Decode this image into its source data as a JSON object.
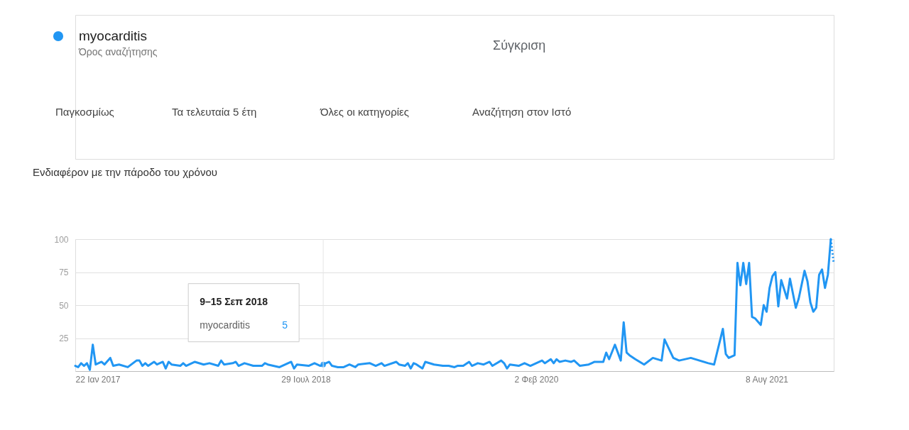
{
  "chart_data": {
    "type": "line",
    "title": "Ενδιαφέρον με την πάροδο του χρόνου",
    "x": [
      "2017-01-22",
      "2017-01-29",
      "2017-02-05",
      "2017-02-12",
      "2017-02-19",
      "2017-02-26",
      "2017-03-05",
      "2017-03-12",
      "2017-03-26",
      "2017-04-02",
      "2017-04-16",
      "2017-04-23",
      "2017-05-07",
      "2017-05-28",
      "2017-06-18",
      "2017-06-25",
      "2017-07-02",
      "2017-07-09",
      "2017-07-16",
      "2017-07-30",
      "2017-08-06",
      "2017-08-20",
      "2017-08-27",
      "2017-09-03",
      "2017-09-10",
      "2017-10-01",
      "2017-10-08",
      "2017-10-15",
      "2017-11-05",
      "2017-11-26",
      "2017-12-10",
      "2017-12-31",
      "2018-01-07",
      "2018-01-14",
      "2018-02-04",
      "2018-02-11",
      "2018-02-18",
      "2018-03-04",
      "2018-03-25",
      "2018-04-15",
      "2018-04-22",
      "2018-04-29",
      "2018-05-27",
      "2018-06-24",
      "2018-07-01",
      "2018-07-08",
      "2018-08-05",
      "2018-08-19",
      "2018-09-02",
      "2018-09-09",
      "2018-09-23",
      "2018-09-30",
      "2018-10-14",
      "2018-10-28",
      "2018-11-11",
      "2018-11-25",
      "2018-12-02",
      "2018-12-30",
      "2019-01-13",
      "2019-01-27",
      "2019-02-03",
      "2019-03-03",
      "2019-03-10",
      "2019-03-24",
      "2019-03-31",
      "2019-04-07",
      "2019-04-14",
      "2019-04-21",
      "2019-05-05",
      "2019-05-12",
      "2019-06-02",
      "2019-06-23",
      "2019-07-07",
      "2019-07-21",
      "2019-07-28",
      "2019-08-11",
      "2019-08-25",
      "2019-09-01",
      "2019-09-15",
      "2019-09-29",
      "2019-10-13",
      "2019-10-20",
      "2019-11-10",
      "2019-11-17",
      "2019-11-24",
      "2019-12-01",
      "2019-12-22",
      "2020-01-05",
      "2020-01-19",
      "2020-02-02",
      "2020-02-16",
      "2020-02-23",
      "2020-03-08",
      "2020-03-15",
      "2020-03-22",
      "2020-03-29",
      "2020-04-12",
      "2020-04-26",
      "2020-05-03",
      "2020-05-17",
      "2020-06-07",
      "2020-06-14",
      "2020-06-21",
      "2020-07-12",
      "2020-07-19",
      "2020-07-26",
      "2020-08-09",
      "2020-08-23",
      "2020-08-30",
      "2020-09-06",
      "2020-09-13",
      "2020-09-27",
      "2020-10-18",
      "2020-11-08",
      "2020-11-29",
      "2020-12-06",
      "2020-12-27",
      "2021-01-10",
      "2021-02-07",
      "2021-03-21",
      "2021-04-04",
      "2021-04-25",
      "2021-05-02",
      "2021-05-09",
      "2021-05-23",
      "2021-05-30",
      "2021-06-06",
      "2021-06-13",
      "2021-06-20",
      "2021-06-27",
      "2021-07-04",
      "2021-07-11",
      "2021-07-25",
      "2021-08-01",
      "2021-08-08",
      "2021-08-15",
      "2021-08-22",
      "2021-08-29",
      "2021-09-05",
      "2021-09-12",
      "2021-09-26",
      "2021-10-03",
      "2021-10-17",
      "2021-10-24",
      "2021-11-07",
      "2021-11-14",
      "2021-11-21",
      "2021-11-28",
      "2021-12-05",
      "2021-12-12",
      "2021-12-19",
      "2021-12-26",
      "2022-01-02",
      "2022-01-09"
    ],
    "series": [
      {
        "name": "myocarditis",
        "color": "#2196f3",
        "line_style": "solid",
        "values": [
          4,
          3,
          6,
          4,
          6,
          1,
          20,
          5,
          7,
          5,
          10,
          4,
          5,
          3,
          8,
          8,
          4,
          6,
          4,
          7,
          5,
          7,
          2,
          7,
          5,
          4,
          6,
          4,
          7,
          5,
          6,
          4,
          8,
          5,
          6,
          7,
          4,
          6,
          4,
          4,
          6,
          5,
          3,
          7,
          2,
          5,
          4,
          6,
          4,
          5,
          7,
          4,
          3,
          3,
          5,
          3,
          5,
          6,
          4,
          6,
          4,
          7,
          5,
          4,
          6,
          2,
          6,
          5,
          2,
          7,
          5,
          4,
          4,
          3,
          4,
          4,
          7,
          4,
          6,
          5,
          7,
          4,
          8,
          6,
          2,
          5,
          4,
          6,
          4,
          6,
          8,
          6,
          9,
          6,
          9,
          7,
          8,
          7,
          8,
          4,
          5,
          6,
          7,
          7,
          14,
          9,
          20,
          8,
          37,
          14,
          12,
          9,
          5,
          10,
          8,
          24,
          10,
          8,
          10,
          6,
          5,
          32,
          13,
          10,
          12,
          82,
          65,
          82,
          66,
          82,
          41,
          40,
          35,
          50,
          45,
          63,
          72,
          75,
          49,
          69,
          55,
          70,
          48,
          55,
          76,
          68,
          52,
          45,
          48,
          73,
          77,
          63,
          73,
          100
        ]
      },
      {
        "color": "#2196f3",
        "line_style": "dotted",
        "x": [
          "2022-01-09",
          "2022-01-16"
        ],
        "values": [
          100,
          82
        ]
      },
      {
        "type": "scatter",
        "color": "#2196f3",
        "marker": "circle",
        "x": [
          "2018-09-09"
        ],
        "values": [
          5
        ]
      }
    ],
    "xlim": [
      "2017-01-22",
      "2022-01-16"
    ],
    "xticks": [
      {
        "value": "2017-01-22",
        "label": "22 Ιαν 2017"
      },
      {
        "value": "2018-07-29",
        "label": "29 Ιουλ 2018"
      },
      {
        "value": "2020-02-02",
        "label": "2 Φεβ 2020"
      },
      {
        "value": "2021-08-08",
        "label": "8 Αυγ 2021"
      }
    ],
    "ylim": [
      0,
      100
    ],
    "yticks": [
      25,
      50,
      75,
      100
    ],
    "grid": "y",
    "legend": "top left",
    "ref_lines": [
      {
        "axis": "x",
        "value": "2018-09-09",
        "color": "#e6e6e6"
      }
    ],
    "annotations": [
      "Όρος αναζήτησης",
      "Σύγκριση",
      "Παγκοσμίως",
      "Τα τελευταία 5 έτη",
      "Όλες οι κατηγορίες",
      "Αναζήτηση στον Ιστό",
      "9–15 Σεπ 2018",
      "myocarditis",
      "5"
    ]
  }
}
